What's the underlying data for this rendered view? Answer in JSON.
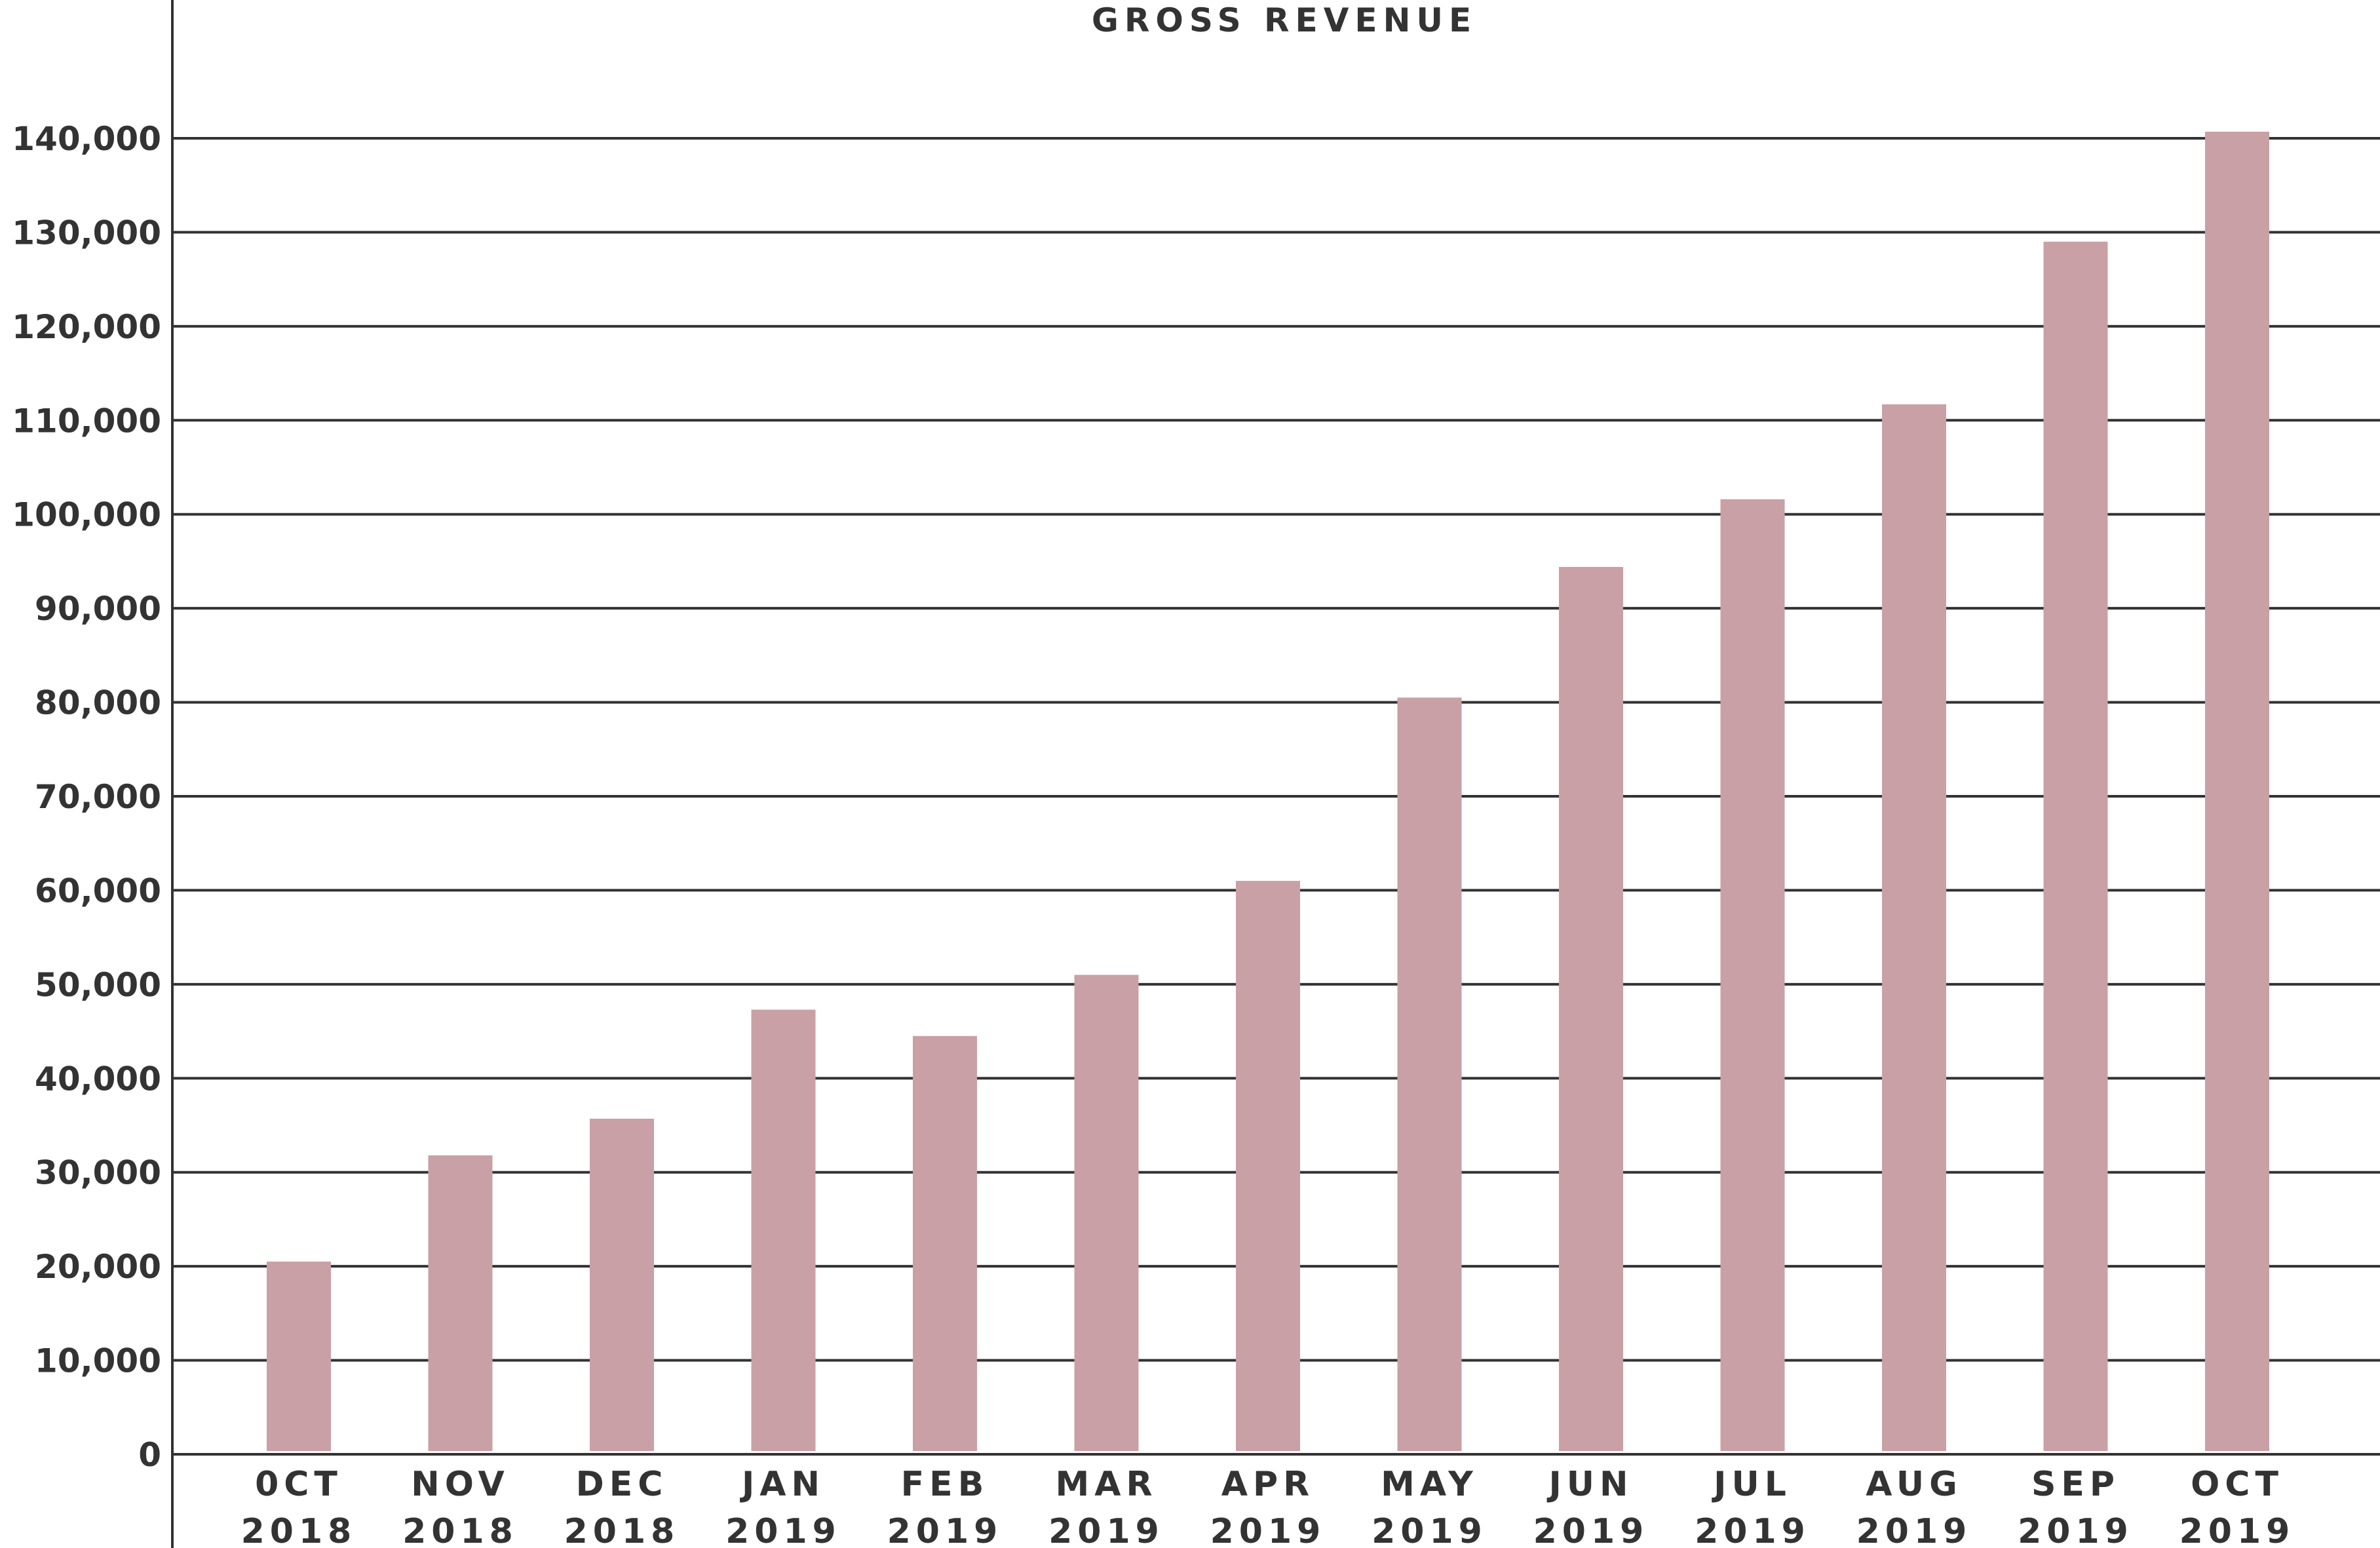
{
  "chart_data": {
    "type": "bar",
    "title": "GROSS REVENUE",
    "xlabel": "",
    "ylabel": "",
    "categories": [
      [
        "0CT",
        "2018"
      ],
      [
        "NOV",
        "2018"
      ],
      [
        "DEC",
        "2018"
      ],
      [
        "JAN",
        "2019"
      ],
      [
        "FEB",
        "2019"
      ],
      [
        "MAR",
        "2019"
      ],
      [
        "APR",
        "2019"
      ],
      [
        "MAY",
        "2019"
      ],
      [
        "JUN",
        "2019"
      ],
      [
        "JUL",
        "2019"
      ],
      [
        "AUG",
        "2019"
      ],
      [
        "SEP",
        "2019"
      ],
      [
        "OCT",
        "2019"
      ]
    ],
    "values": [
      20500,
      31800,
      35700,
      47300,
      44500,
      51000,
      61000,
      80500,
      94400,
      101600,
      111700,
      129000,
      140700
    ],
    "ylim": [
      0,
      140000
    ],
    "yticks": [
      0,
      10000,
      20000,
      30000,
      40000,
      50000,
      60000,
      70000,
      80000,
      90000,
      100000,
      110000,
      120000,
      130000,
      140000
    ],
    "ytick_labels": [
      "0",
      "10,000",
      "20,000",
      "30,000",
      "40,000",
      "50,000",
      "60,000",
      "70,000",
      "80,000",
      "90,000",
      "100,000",
      "110,000",
      "120,000",
      "130,000",
      "140,000"
    ],
    "grid": true,
    "legend": "none",
    "bar_color": "#c9a0a5",
    "grid_color": "#333333",
    "axis_color": "#333333",
    "text_color": "#333333"
  }
}
